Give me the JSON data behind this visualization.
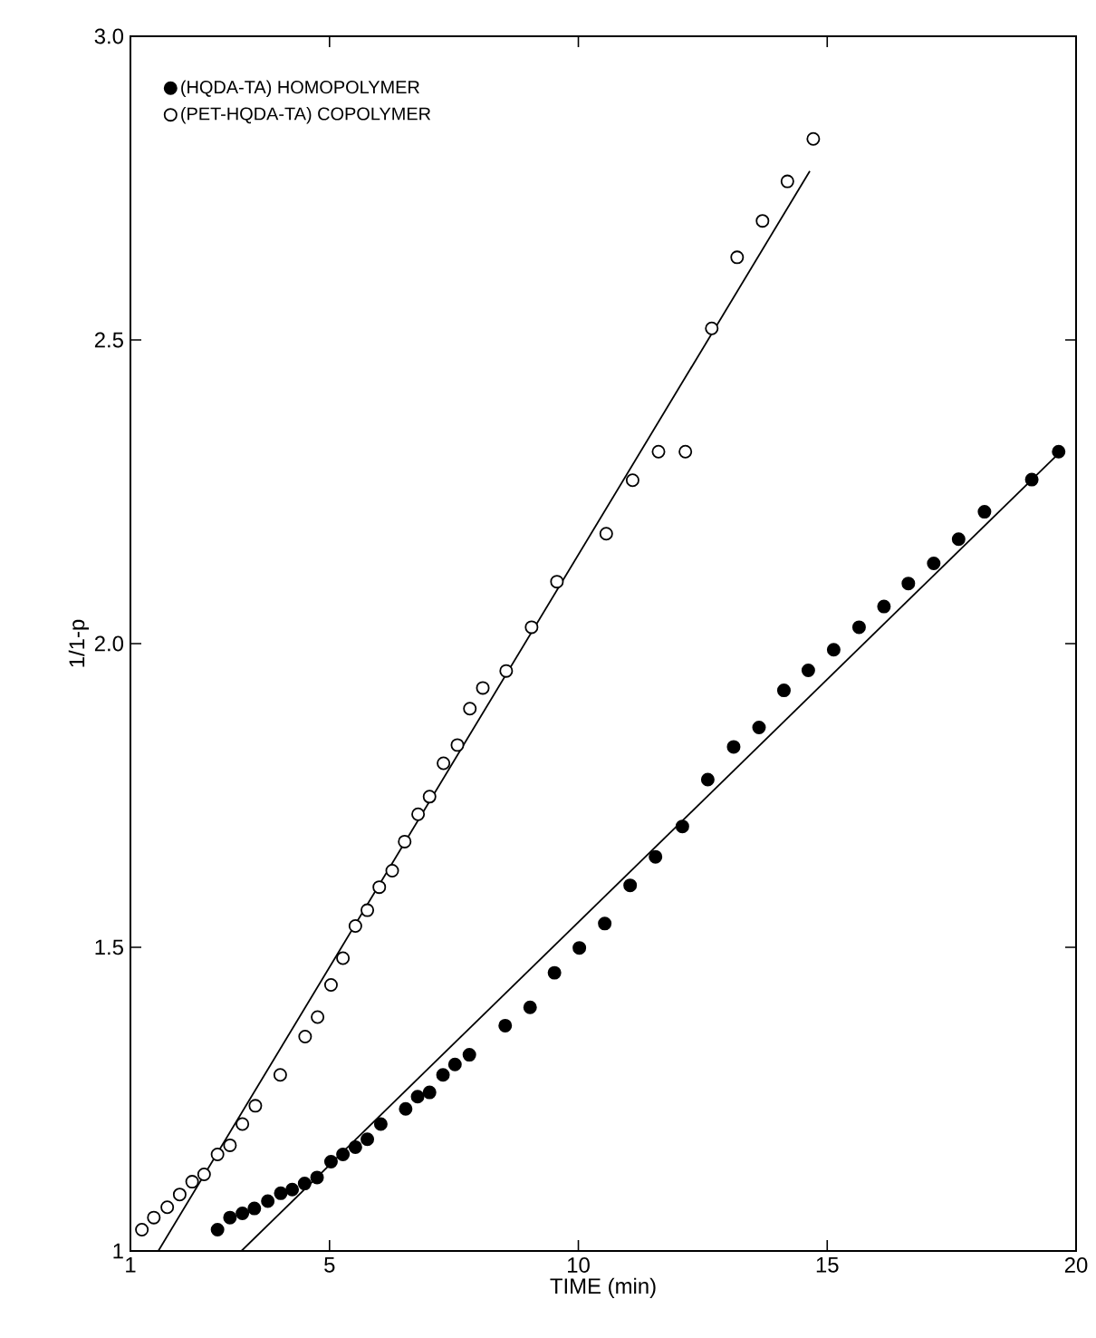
{
  "chart_data": {
    "type": "scatter",
    "xlabel": "TIME (min)",
    "ylabel": "1/1-p",
    "xlim": [
      1,
      20
    ],
    "ylim": [
      1,
      3
    ],
    "xticks": [
      1,
      5,
      10,
      15,
      20
    ],
    "yticks": [
      1,
      1.5,
      {
        "value": 2,
        "label": "2.0"
      },
      2.5,
      {
        "value": 3,
        "label": "3.0"
      }
    ],
    "grid": false,
    "legend": "top left",
    "marker": "circle",
    "series": [
      {
        "name": "(HQDA-TA) HOMOPOLYMER",
        "color": "#000000",
        "x": [
          2.75,
          3.0,
          3.25,
          3.49,
          3.76,
          4.02,
          4.25,
          4.5,
          4.75,
          5.03,
          5.27,
          5.52,
          5.76,
          6.03,
          6.53,
          6.77,
          7.01,
          7.28,
          7.52,
          7.81,
          8.53,
          9.03,
          9.52,
          10.02,
          10.53,
          11.04,
          11.55,
          12.09,
          12.6,
          13.12,
          13.63,
          14.13,
          14.62,
          15.13,
          15.64,
          16.14,
          16.63,
          17.14,
          17.64,
          18.16,
          19.11,
          19.65
        ],
        "values": [
          1.035,
          1.055,
          1.062,
          1.07,
          1.082,
          1.095,
          1.101,
          1.111,
          1.121,
          1.147,
          1.159,
          1.171,
          1.184,
          1.209,
          1.234,
          1.254,
          1.261,
          1.29,
          1.307,
          1.323,
          1.371,
          1.401,
          1.458,
          1.499,
          1.539,
          1.602,
          1.649,
          1.699,
          1.776,
          1.83,
          1.862,
          1.923,
          1.956,
          1.99,
          2.027,
          2.061,
          2.099,
          2.132,
          2.172,
          2.217,
          2.27,
          2.316
        ]
      },
      {
        "name": "(PET-HQDA-TA) COPOLYMER",
        "color": "#ffffff",
        "x": [
          1.23,
          1.47,
          1.74,
          1.99,
          2.24,
          2.48,
          2.75,
          3.0,
          3.25,
          3.51,
          4.01,
          4.51,
          4.76,
          5.03,
          5.27,
          5.52,
          5.76,
          6.0,
          6.26,
          6.51,
          6.78,
          7.01,
          7.29,
          7.57,
          7.82,
          8.08,
          8.55,
          9.06,
          9.57,
          10.56,
          11.09,
          11.61,
          12.15,
          12.68,
          13.19,
          13.7,
          14.2,
          14.72
        ],
        "values": [
          1.035,
          1.055,
          1.072,
          1.093,
          1.114,
          1.126,
          1.159,
          1.174,
          1.209,
          1.239,
          1.29,
          1.353,
          1.385,
          1.438,
          1.482,
          1.535,
          1.561,
          1.599,
          1.626,
          1.674,
          1.719,
          1.748,
          1.803,
          1.833,
          1.893,
          1.927,
          1.955,
          2.027,
          2.102,
          2.181,
          2.269,
          2.316,
          2.316,
          2.519,
          2.636,
          2.696,
          2.761,
          2.831
        ]
      },
      {
        "type": "line",
        "marker": "none",
        "color": "#000000",
        "x": [
          3.23,
          19.65
        ],
        "values": [
          1.0,
          2.313
        ]
      },
      {
        "type": "line",
        "marker": "none",
        "color": "#000000",
        "x": [
          1.56,
          14.65
        ],
        "values": [
          1.0,
          2.778
        ]
      }
    ]
  }
}
